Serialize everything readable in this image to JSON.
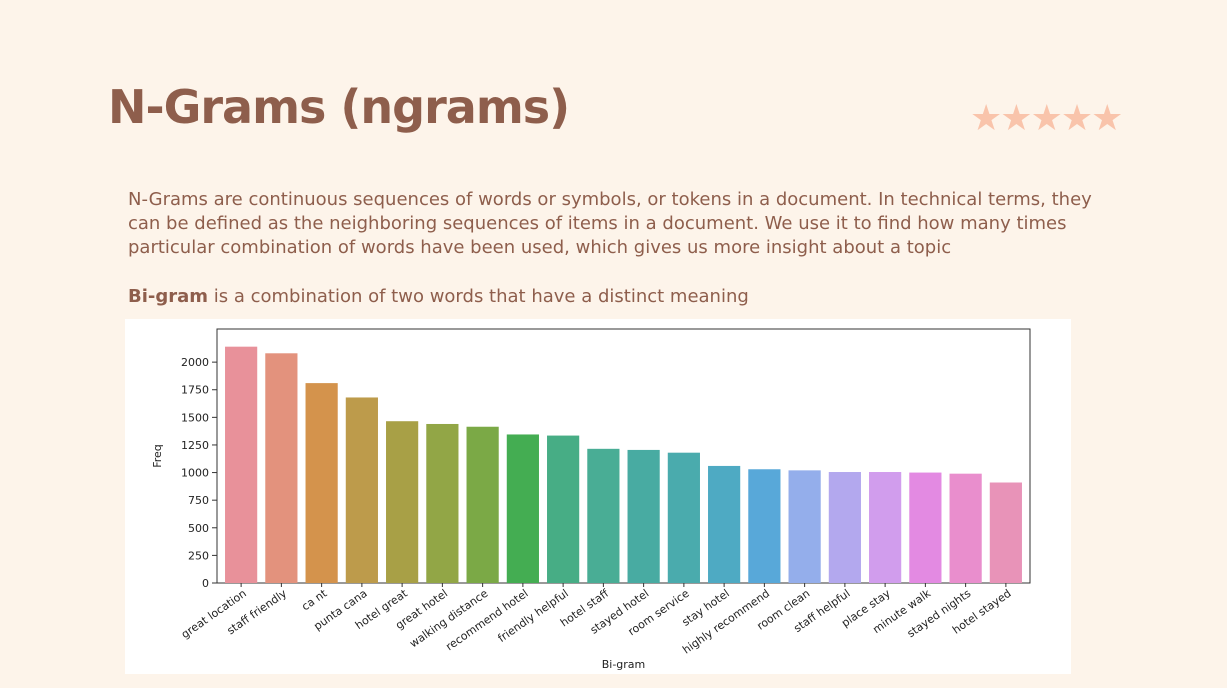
{
  "slide": {
    "title": "N-Grams (ngrams)",
    "stars_icon": "star-icon",
    "star_count": 5,
    "star_color": "#f9c4ab",
    "paragraph": "N-Grams are continuous sequences of words or symbols, or tokens in a document. In technical terms, they can be defined as the neighboring sequences of items in a document. We use it to find how many times particular combination of words have been used, which gives us more insight about a topic",
    "bigram_term": "Bi-gram",
    "bigram_desc": " is a combination of two words that have a distinct meaning"
  },
  "chart_data": {
    "type": "bar",
    "xlabel": "Bi-gram",
    "ylabel": "Freq",
    "ylim": [
      0,
      2300
    ],
    "yticks": [
      0,
      250,
      500,
      750,
      1000,
      1250,
      1500,
      1750,
      2000
    ],
    "categories": [
      "great location",
      "staff friendly",
      "ca nt",
      "punta cana",
      "hotel great",
      "great hotel",
      "walking distance",
      "recommend hotel",
      "friendly helpful",
      "hotel staff",
      "stayed hotel",
      "room service",
      "stay hotel",
      "highly recommend",
      "room clean",
      "staff helpful",
      "place stay",
      "minute walk",
      "stayed nights",
      "hotel stayed"
    ],
    "values": [
      2140,
      2080,
      1810,
      1680,
      1465,
      1440,
      1415,
      1345,
      1335,
      1215,
      1205,
      1180,
      1060,
      1030,
      1020,
      1005,
      1005,
      1000,
      990,
      910
    ],
    "colors": [
      "#e8919a",
      "#e3927d",
      "#d4934c",
      "#bd9b4b",
      "#a8a046",
      "#92a646",
      "#7ba946",
      "#44ad52",
      "#47ad85",
      "#49ad95",
      "#48aba2",
      "#4aabad",
      "#4eaac3",
      "#58a8d9",
      "#94aeeb",
      "#b3a8ee",
      "#d19ded",
      "#e38ae2",
      "#e98ecd",
      "#e893b8"
    ]
  }
}
